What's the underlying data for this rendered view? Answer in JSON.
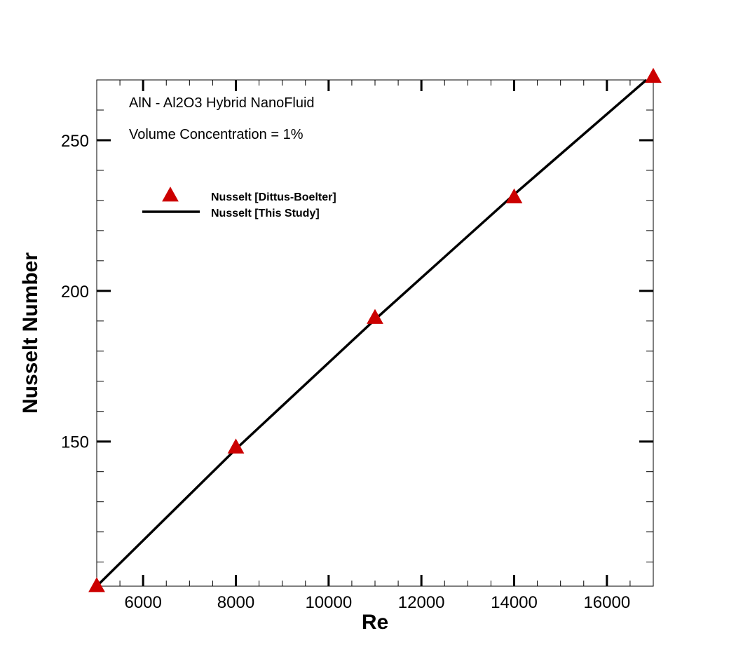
{
  "chart_data": {
    "type": "scatter",
    "title": "",
    "xlabel": "Re",
    "ylabel": "Nusselt Number",
    "xlim": [
      5000,
      17000
    ],
    "ylim": [
      102,
      270
    ],
    "x_ticks": [
      6000,
      8000,
      10000,
      12000,
      14000,
      16000
    ],
    "x_tick_labels": [
      "6000",
      "8000",
      "10000",
      "12000",
      "14000",
      "16000"
    ],
    "y_ticks": [
      150,
      200,
      250
    ],
    "y_tick_labels": [
      "150",
      "200",
      "250"
    ],
    "grid": false,
    "legend_position": "upper-left",
    "annotations": [
      "AlN - Al2O3 Hybrid NanoFluid",
      "Volume Concentration = 1%"
    ],
    "series": [
      {
        "name": "Nusselt [Dittus-Boelter]",
        "kind": "markers",
        "marker": "triangle",
        "color": "#cc0000",
        "x": [
          5000,
          8000,
          11000,
          14000,
          17000
        ],
        "y": [
          102,
          148,
          191,
          231,
          271
        ]
      },
      {
        "name": "Nusselt [This Study]",
        "kind": "line",
        "color": "#000000",
        "x": [
          5000,
          8000,
          11000,
          14000,
          16850
        ],
        "y": [
          102,
          147.5,
          190.5,
          232,
          270
        ]
      }
    ]
  }
}
